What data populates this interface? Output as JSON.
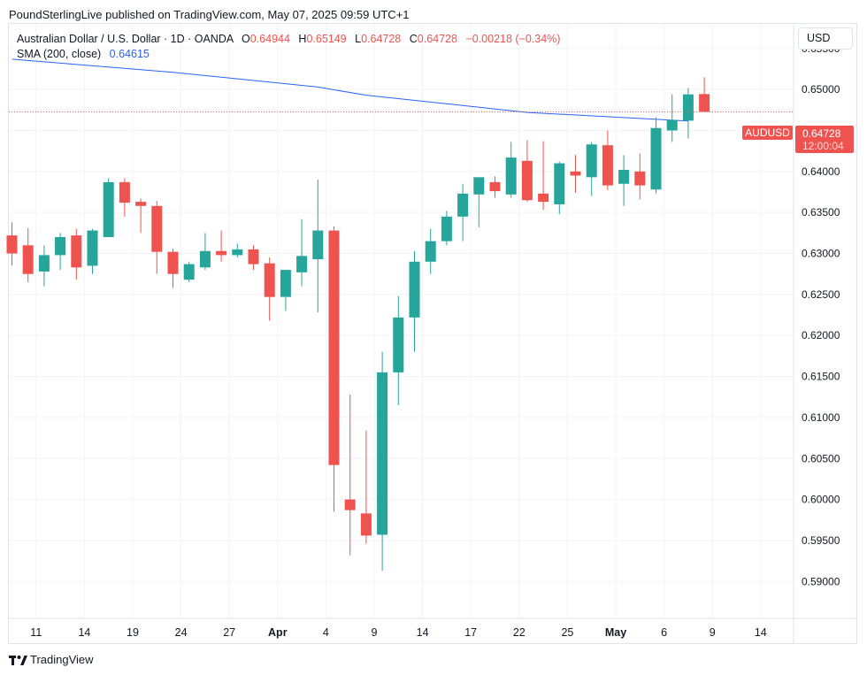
{
  "header": {
    "attribution": "PoundSterlingLive published on TradingView.com, May 07, 2025 09:59 UTC+1"
  },
  "legend": {
    "symbol": "Australian Dollar / U.S. Dollar · 1D · OANDA",
    "o_label": "O",
    "o_value": "0.64944",
    "h_label": "H",
    "h_value": "0.65149",
    "l_label": "L",
    "l_value": "0.64728",
    "c_label": "C",
    "c_value": "0.64728",
    "change": "−0.00218 (−0.34%)",
    "sma_label": "SMA (200, close)",
    "sma_value": "0.64615"
  },
  "currency_button": "USD",
  "price_tag": {
    "symbol": "AUDUSD",
    "price": "0.64728",
    "countdown": "12:00:04"
  },
  "footer": {
    "brand": "TradingView"
  },
  "colors": {
    "up": "#26a69a",
    "down": "#ef5350",
    "sma": "#2962ff",
    "grid": "#f0f3fa"
  },
  "chart_data": {
    "type": "candlestick",
    "title": "Australian Dollar / U.S. Dollar · 1D · OANDA",
    "ylim": [
      0.5855,
      0.658
    ],
    "y_ticks": [
      "0.65500",
      "0.65000",
      "0.64500",
      "0.64000",
      "0.63500",
      "0.63000",
      "0.62500",
      "0.62000",
      "0.61500",
      "0.61000",
      "0.60500",
      "0.60000",
      "0.59500",
      "0.59000"
    ],
    "y_tick_values": [
      0.655,
      0.65,
      0.645,
      0.64,
      0.635,
      0.63,
      0.625,
      0.62,
      0.615,
      0.61,
      0.605,
      0.6,
      0.595,
      0.59
    ],
    "x_labels": [
      {
        "label": "11",
        "index": 1.5
      },
      {
        "label": "14",
        "index": 4.5
      },
      {
        "label": "19",
        "index": 7.5
      },
      {
        "label": "24",
        "index": 10.5
      },
      {
        "label": "27",
        "index": 13.5
      },
      {
        "label": "Apr",
        "index": 16.5
      },
      {
        "label": "4",
        "index": 19.5
      },
      {
        "label": "9",
        "index": 22.5
      },
      {
        "label": "14",
        "index": 25.5
      },
      {
        "label": "17",
        "index": 28.5
      },
      {
        "label": "22",
        "index": 31.5
      },
      {
        "label": "25",
        "index": 34.5
      },
      {
        "label": "May",
        "index": 37.5
      },
      {
        "label": "6",
        "index": 40.5
      },
      {
        "label": "9",
        "index": 43.5
      },
      {
        "label": "14",
        "index": 46.5
      }
    ],
    "bold_x_labels": [
      "Apr",
      "May"
    ],
    "index_range": [
      0,
      48
    ],
    "candles": [
      {
        "o": 0.6322,
        "h": 0.6338,
        "l": 0.6285,
        "c": 0.63
      },
      {
        "o": 0.631,
        "h": 0.6331,
        "l": 0.6265,
        "c": 0.6275
      },
      {
        "o": 0.6278,
        "h": 0.631,
        "l": 0.626,
        "c": 0.6298
      },
      {
        "o": 0.6298,
        "h": 0.6325,
        "l": 0.628,
        "c": 0.632
      },
      {
        "o": 0.6322,
        "h": 0.633,
        "l": 0.6268,
        "c": 0.6283
      },
      {
        "o": 0.6285,
        "h": 0.633,
        "l": 0.6275,
        "c": 0.6328
      },
      {
        "o": 0.632,
        "h": 0.6392,
        "l": 0.632,
        "c": 0.6387
      },
      {
        "o": 0.6387,
        "h": 0.6392,
        "l": 0.6345,
        "c": 0.6362
      },
      {
        "o": 0.6363,
        "h": 0.6367,
        "l": 0.6325,
        "c": 0.6358
      },
      {
        "o": 0.6358,
        "h": 0.6364,
        "l": 0.6275,
        "c": 0.6302
      },
      {
        "o": 0.6302,
        "h": 0.6306,
        "l": 0.6258,
        "c": 0.6275
      },
      {
        "o": 0.6268,
        "h": 0.629,
        "l": 0.6265,
        "c": 0.6287
      },
      {
        "o": 0.6283,
        "h": 0.6325,
        "l": 0.628,
        "c": 0.6303
      },
      {
        "o": 0.6303,
        "h": 0.6328,
        "l": 0.629,
        "c": 0.6298
      },
      {
        "o": 0.6298,
        "h": 0.6312,
        "l": 0.6295,
        "c": 0.6305
      },
      {
        "o": 0.6305,
        "h": 0.631,
        "l": 0.628,
        "c": 0.6287
      },
      {
        "o": 0.6288,
        "h": 0.6295,
        "l": 0.6218,
        "c": 0.6247
      },
      {
        "o": 0.6247,
        "h": 0.628,
        "l": 0.623,
        "c": 0.628
      },
      {
        "o": 0.6277,
        "h": 0.6342,
        "l": 0.626,
        "c": 0.6297
      },
      {
        "o": 0.6293,
        "h": 0.639,
        "l": 0.6228,
        "c": 0.6328
      },
      {
        "o": 0.6328,
        "h": 0.6333,
        "l": 0.5985,
        "c": 0.6042
      },
      {
        "o": 0.6,
        "h": 0.6128,
        "l": 0.5932,
        "c": 0.5987
      },
      {
        "o": 0.5983,
        "h": 0.6084,
        "l": 0.5946,
        "c": 0.5956
      },
      {
        "o": 0.5957,
        "h": 0.618,
        "l": 0.5913,
        "c": 0.6155
      },
      {
        "o": 0.6155,
        "h": 0.6248,
        "l": 0.6115,
        "c": 0.6222
      },
      {
        "o": 0.6222,
        "h": 0.6303,
        "l": 0.618,
        "c": 0.629
      },
      {
        "o": 0.629,
        "h": 0.633,
        "l": 0.6275,
        "c": 0.6315
      },
      {
        "o": 0.6315,
        "h": 0.6352,
        "l": 0.631,
        "c": 0.6345
      },
      {
        "o": 0.6345,
        "h": 0.6385,
        "l": 0.6315,
        "c": 0.6373
      },
      {
        "o": 0.6372,
        "h": 0.6393,
        "l": 0.6332,
        "c": 0.6393
      },
      {
        "o": 0.6387,
        "h": 0.6394,
        "l": 0.6368,
        "c": 0.6376
      },
      {
        "o": 0.6372,
        "h": 0.6436,
        "l": 0.6368,
        "c": 0.6417
      },
      {
        "o": 0.6413,
        "h": 0.6438,
        "l": 0.6363,
        "c": 0.6365
      },
      {
        "o": 0.6373,
        "h": 0.6437,
        "l": 0.6353,
        "c": 0.6363
      },
      {
        "o": 0.636,
        "h": 0.6412,
        "l": 0.6348,
        "c": 0.641
      },
      {
        "o": 0.64,
        "h": 0.642,
        "l": 0.6374,
        "c": 0.6395
      },
      {
        "o": 0.6393,
        "h": 0.6436,
        "l": 0.637,
        "c": 0.6433
      },
      {
        "o": 0.6432,
        "h": 0.645,
        "l": 0.6377,
        "c": 0.6383
      },
      {
        "o": 0.6385,
        "h": 0.642,
        "l": 0.6358,
        "c": 0.6402
      },
      {
        "o": 0.64,
        "h": 0.6422,
        "l": 0.6366,
        "c": 0.6383
      },
      {
        "o": 0.6378,
        "h": 0.6466,
        "l": 0.6373,
        "c": 0.6453
      },
      {
        "o": 0.645,
        "h": 0.6494,
        "l": 0.6436,
        "c": 0.6463
      },
      {
        "o": 0.6462,
        "h": 0.6502,
        "l": 0.644,
        "c": 0.6494
      },
      {
        "o": 0.64944,
        "h": 0.65149,
        "l": 0.64728,
        "c": 0.64728
      }
    ],
    "sma": {
      "name": "SMA (200, close)",
      "index": [
        0,
        10,
        19,
        22,
        32,
        42
      ],
      "values": [
        0.6537,
        0.6521,
        0.6503,
        0.6493,
        0.6472,
        0.64615
      ]
    },
    "last_price": 0.64728
  }
}
